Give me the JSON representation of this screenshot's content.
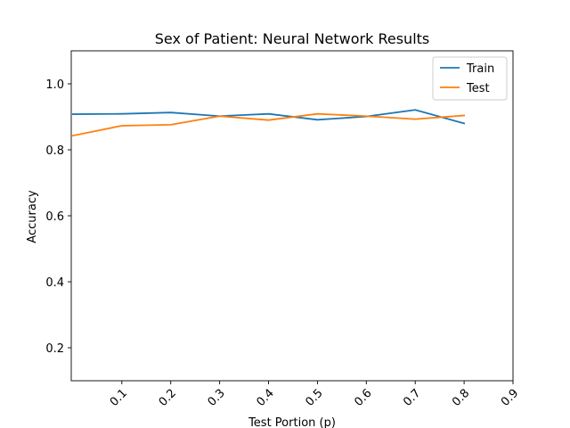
{
  "chart_data": {
    "type": "line",
    "title": "Sex of Patient: Neural Network Results",
    "xlabel": "Test Portion (p)",
    "ylabel": "Accuracy",
    "xlim": [
      -0.0035,
      0.9
    ],
    "ylim": [
      0.1,
      1.1
    ],
    "xticks": [
      0.1,
      0.2,
      0.3,
      0.4,
      0.5,
      0.6,
      0.7,
      0.8,
      0.9
    ],
    "xtick_labels": [
      "0.1",
      "0.2",
      "0.3",
      "0.4",
      "0.5",
      "0.6",
      "0.7",
      "0.8",
      "0.9"
    ],
    "yticks": [
      0.2,
      0.4,
      0.6,
      0.8,
      1.0
    ],
    "ytick_labels": [
      "0.2",
      "0.4",
      "0.6",
      "0.8",
      "1.0"
    ],
    "grid": false,
    "legend_position": "top-right",
    "x": [
      0.0,
      0.1,
      0.2,
      0.3,
      0.4,
      0.5,
      0.6,
      0.7,
      0.8
    ],
    "series": [
      {
        "name": "Train",
        "color": "#1f77b4",
        "values": [
          0.908,
          0.909,
          0.913,
          0.902,
          0.909,
          0.891,
          0.901,
          0.921,
          0.88
        ]
      },
      {
        "name": "Test",
        "color": "#ff7f0e",
        "values": [
          0.843,
          0.873,
          0.876,
          0.902,
          0.89,
          0.909,
          0.902,
          0.893,
          0.904
        ]
      }
    ]
  }
}
